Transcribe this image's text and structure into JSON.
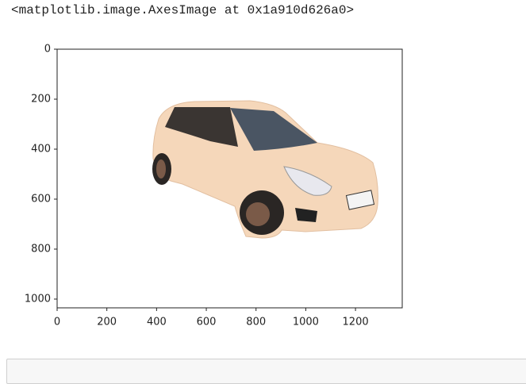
{
  "output_text": "<matplotlib.image.AxesImage at 0x1a910d626a0>",
  "chart_data": {
    "type": "image",
    "xlim": [
      0,
      1388
    ],
    "ylim": [
      1035,
      0
    ],
    "xticks": [
      0,
      200,
      400,
      600,
      800,
      1000,
      1200
    ],
    "yticks": [
      0,
      200,
      400,
      600,
      800,
      1000
    ]
  }
}
